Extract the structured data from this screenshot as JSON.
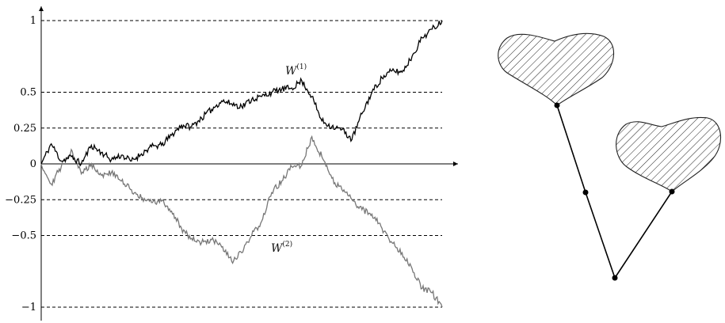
{
  "chart_data": {
    "type": "line",
    "ylim": [
      -1,
      1
    ],
    "y_ticks": [
      {
        "value": 1,
        "label": "1"
      },
      {
        "value": 0.5,
        "label": "0.5"
      },
      {
        "value": 0.25,
        "label": "0.25"
      },
      {
        "value": 0,
        "label": "0"
      },
      {
        "value": -0.25,
        "label": "−0.25"
      },
      {
        "value": -0.5,
        "label": "−0.5"
      },
      {
        "value": -1,
        "label": "−1"
      }
    ],
    "dashed_reference_lines": [
      1,
      0.5,
      0.25,
      -0.25,
      -0.5,
      -1
    ],
    "series": [
      {
        "name": "W(1)",
        "label_base": "W",
        "label_sup": "(1)",
        "color": "#000000",
        "values": [
          0,
          0.14,
          0.02,
          0.05,
          0,
          0.13,
          0.08,
          0.03,
          0.06,
          0.02,
          0.07,
          0.12,
          0.13,
          0.2,
          0.27,
          0.26,
          0.32,
          0.38,
          0.44,
          0.42,
          0.4,
          0.45,
          0.47,
          0.5,
          0.52,
          0.53,
          0.58,
          0.47,
          0.3,
          0.26,
          0.24,
          0.17,
          0.35,
          0.5,
          0.6,
          0.65,
          0.64,
          0.75,
          0.88,
          0.94,
          1.0
        ]
      },
      {
        "name": "W(2)",
        "label_base": "W",
        "label_sup": "(2)",
        "color": "#777777",
        "values": [
          0,
          -0.14,
          -0.02,
          0.1,
          -0.07,
          0,
          -0.08,
          -0.06,
          -0.12,
          -0.18,
          -0.24,
          -0.27,
          -0.26,
          -0.33,
          -0.45,
          -0.52,
          -0.55,
          -0.53,
          -0.58,
          -0.68,
          -0.62,
          -0.5,
          -0.4,
          -0.2,
          -0.12,
          -0.02,
          -0.01,
          0.19,
          0.05,
          -0.1,
          -0.18,
          -0.25,
          -0.32,
          -0.35,
          -0.45,
          -0.55,
          -0.62,
          -0.73,
          -0.87,
          -0.9,
          -1.0
        ]
      }
    ]
  },
  "tree": {
    "edge_color": "#000000",
    "hatch_color": "#222222",
    "blobs": [
      "upper-left-blob",
      "right-blob"
    ],
    "nodes": [
      "root-node",
      "middle-node",
      "left-attach-node",
      "right-attach-node"
    ]
  }
}
